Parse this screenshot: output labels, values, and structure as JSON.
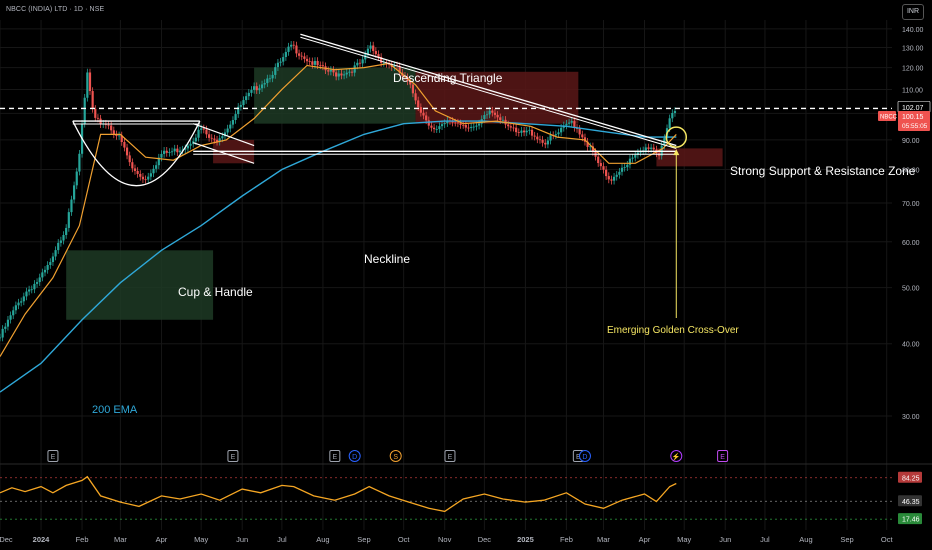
{
  "header": {
    "symbol_line": "NBCC (INDIA) LTD · 1D · NSE",
    "currency": "INR"
  },
  "colors": {
    "price": "#ffffff",
    "ema20": "#f0a030",
    "ema200": "#2fa8d8",
    "up": "#26a69a",
    "down": "#ef5350",
    "rsi": "#f5a623",
    "annotation": "#ffffff",
    "golden": "#f5e663",
    "cloud_green": "#1d3a24",
    "cloud_red": "#5a1818"
  },
  "annotations": {
    "descending_triangle": "Descending Triangle",
    "neckline": "Neckline",
    "cup_handle": "Cup & Handle",
    "ema200_label": "200 EMA",
    "sr_zone": "Strong Support & Resistance Zone",
    "golden_cross": "Emerging Golden Cross-Over"
  },
  "price_badges": {
    "last_level": "102.07",
    "ticker": "NBCC",
    "price": "100.15",
    "timer": "05:55:05"
  },
  "rsi_badges": {
    "upper": "84.25",
    "mid": "46.35",
    "lower": "17.46"
  },
  "event_markers": [
    {
      "date": "2024-01-10",
      "type": "E"
    },
    {
      "date": "2024-05-25",
      "type": "E"
    },
    {
      "date": "2024-08-10",
      "type": "E"
    },
    {
      "date": "2024-08-25",
      "type": "D"
    },
    {
      "date": "2024-09-25",
      "type": "S"
    },
    {
      "date": "2024-11-05",
      "type": "E"
    },
    {
      "date": "2025-02-10",
      "type": "E"
    },
    {
      "date": "2025-02-15",
      "type": "D"
    },
    {
      "date": "2025-04-25",
      "type": "⚡"
    },
    {
      "date": "2025-05-30",
      "type": "E"
    }
  ],
  "chart_data": {
    "type": "line",
    "title": "",
    "xlabel": "",
    "ylabel": "",
    "x_range": [
      "2023-12-01",
      "2025-10-05"
    ],
    "ylim": [
      26,
      145
    ],
    "y_scale": "log",
    "y_ticks": [
      30,
      40,
      50,
      60,
      70,
      80,
      90,
      100,
      110,
      120,
      130,
      140
    ],
    "y_tick_labels": [
      "30.00",
      "40.00",
      "50.00",
      "60.00",
      "70.00",
      "80.00",
      "90.00",
      "100.00",
      "110.00",
      "120.00",
      "130.00",
      "140.00"
    ],
    "x_ticks": [
      {
        "date": "2023-12-01",
        "label": "Dec"
      },
      {
        "date": "2024-01-01",
        "label": "2024"
      },
      {
        "date": "2024-02-01",
        "label": "Feb"
      },
      {
        "date": "2024-03-01",
        "label": "Mar"
      },
      {
        "date": "2024-04-01",
        "label": "Apr"
      },
      {
        "date": "2024-05-01",
        "label": "May"
      },
      {
        "date": "2024-06-01",
        "label": "Jun"
      },
      {
        "date": "2024-07-01",
        "label": "Jul"
      },
      {
        "date": "2024-08-01",
        "label": "Aug"
      },
      {
        "date": "2024-09-01",
        "label": "Sep"
      },
      {
        "date": "2024-10-01",
        "label": "Oct"
      },
      {
        "date": "2024-11-01",
        "label": "Nov"
      },
      {
        "date": "2024-12-01",
        "label": "Dec"
      },
      {
        "date": "2025-01-01",
        "label": "2025"
      },
      {
        "date": "2025-02-01",
        "label": "Feb"
      },
      {
        "date": "2025-03-01",
        "label": "Mar"
      },
      {
        "date": "2025-04-01",
        "label": "Apr"
      },
      {
        "date": "2025-05-01",
        "label": "May"
      },
      {
        "date": "2025-06-01",
        "label": "Jun"
      },
      {
        "date": "2025-07-01",
        "label": "Jul"
      },
      {
        "date": "2025-08-01",
        "label": "Aug"
      },
      {
        "date": "2025-09-01",
        "label": "Sep"
      },
      {
        "date": "2025-10-01",
        "label": "Oct"
      }
    ],
    "series": [
      {
        "key": "price",
        "values": [
          [
            "2023-12-01",
            41
          ],
          [
            "2023-12-10",
            45
          ],
          [
            "2023-12-20",
            49
          ],
          [
            "2024-01-01",
            52
          ],
          [
            "2024-01-10",
            56
          ],
          [
            "2024-01-20",
            64
          ],
          [
            "2024-01-30",
            84
          ],
          [
            "2024-02-05",
            117
          ],
          [
            "2024-02-10",
            97
          ],
          [
            "2024-02-20",
            96
          ],
          [
            "2024-03-01",
            90
          ],
          [
            "2024-03-10",
            80
          ],
          [
            "2024-03-20",
            77
          ],
          [
            "2024-04-01",
            85
          ],
          [
            "2024-04-10",
            86
          ],
          [
            "2024-04-20",
            88
          ],
          [
            "2024-05-01",
            94
          ],
          [
            "2024-05-10",
            89
          ],
          [
            "2024-05-20",
            94
          ],
          [
            "2024-06-01",
            104
          ],
          [
            "2024-06-10",
            110
          ],
          [
            "2024-06-20",
            115
          ],
          [
            "2024-07-01",
            123
          ],
          [
            "2024-07-08",
            131
          ],
          [
            "2024-07-20",
            124
          ],
          [
            "2024-08-01",
            119
          ],
          [
            "2024-08-10",
            117
          ],
          [
            "2024-08-20",
            118
          ],
          [
            "2024-09-01",
            123
          ],
          [
            "2024-09-05",
            131
          ],
          [
            "2024-09-15",
            123
          ],
          [
            "2024-09-25",
            120
          ],
          [
            "2024-10-05",
            112
          ],
          [
            "2024-10-15",
            100
          ],
          [
            "2024-10-25",
            93
          ],
          [
            "2024-11-05",
            97
          ],
          [
            "2024-11-15",
            96
          ],
          [
            "2024-11-25",
            94
          ],
          [
            "2024-12-05",
            101
          ],
          [
            "2024-12-15",
            98
          ],
          [
            "2024-12-25",
            92
          ],
          [
            "2025-01-05",
            93
          ],
          [
            "2025-01-15",
            89
          ],
          [
            "2025-01-25",
            92
          ],
          [
            "2025-02-05",
            97
          ],
          [
            "2025-02-15",
            90
          ],
          [
            "2025-02-25",
            82
          ],
          [
            "2025-03-05",
            76
          ],
          [
            "2025-03-15",
            81
          ],
          [
            "2025-03-25",
            84
          ],
          [
            "2025-04-05",
            88
          ],
          [
            "2025-04-12",
            85
          ],
          [
            "2025-04-20",
            98
          ],
          [
            "2025-04-25",
            100
          ]
        ]
      },
      {
        "key": "ema20",
        "values": [
          [
            "2023-12-01",
            38
          ],
          [
            "2023-12-20",
            45
          ],
          [
            "2024-01-10",
            52
          ],
          [
            "2024-01-30",
            64
          ],
          [
            "2024-02-15",
            92
          ],
          [
            "2024-03-01",
            92
          ],
          [
            "2024-03-20",
            84
          ],
          [
            "2024-04-10",
            83
          ],
          [
            "2024-05-01",
            88
          ],
          [
            "2024-05-20",
            90
          ],
          [
            "2024-06-10",
            98
          ],
          [
            "2024-07-01",
            110
          ],
          [
            "2024-07-20",
            121
          ],
          [
            "2024-08-10",
            119
          ],
          [
            "2024-09-01",
            120
          ],
          [
            "2024-09-20",
            122
          ],
          [
            "2024-10-10",
            112
          ],
          [
            "2024-10-25",
            101
          ],
          [
            "2024-11-15",
            96
          ],
          [
            "2024-12-10",
            97
          ],
          [
            "2025-01-05",
            95
          ],
          [
            "2025-01-25",
            91
          ],
          [
            "2025-02-15",
            90
          ],
          [
            "2025-03-05",
            82
          ],
          [
            "2025-03-25",
            82
          ],
          [
            "2025-04-15",
            87
          ],
          [
            "2025-04-25",
            92
          ]
        ]
      },
      {
        "key": "ema200",
        "values": [
          [
            "2023-12-01",
            33
          ],
          [
            "2024-01-01",
            37
          ],
          [
            "2024-02-01",
            44
          ],
          [
            "2024-03-01",
            51
          ],
          [
            "2024-04-01",
            58
          ],
          [
            "2024-05-01",
            64
          ],
          [
            "2024-06-01",
            72
          ],
          [
            "2024-07-01",
            80
          ],
          [
            "2024-08-01",
            86
          ],
          [
            "2024-09-01",
            92
          ],
          [
            "2024-10-01",
            96
          ],
          [
            "2024-11-01",
            97
          ],
          [
            "2024-12-01",
            97
          ],
          [
            "2025-01-01",
            96
          ],
          [
            "2025-02-01",
            95
          ],
          [
            "2025-03-01",
            93
          ],
          [
            "2025-04-01",
            91
          ],
          [
            "2025-04-25",
            91
          ]
        ]
      },
      {
        "key": "rsi",
        "values": [
          [
            "2023-12-01",
            60
          ],
          [
            "2023-12-10",
            68
          ],
          [
            "2023-12-20",
            62
          ],
          [
            "2024-01-01",
            70
          ],
          [
            "2024-01-10",
            60
          ],
          [
            "2024-01-20",
            72
          ],
          [
            "2024-02-01",
            80
          ],
          [
            "2024-02-05",
            86
          ],
          [
            "2024-02-15",
            55
          ],
          [
            "2024-03-01",
            45
          ],
          [
            "2024-03-15",
            38
          ],
          [
            "2024-04-01",
            55
          ],
          [
            "2024-04-15",
            50
          ],
          [
            "2024-05-01",
            58
          ],
          [
            "2024-05-15",
            48
          ],
          [
            "2024-06-01",
            66
          ],
          [
            "2024-06-15",
            60
          ],
          [
            "2024-07-01",
            72
          ],
          [
            "2024-07-10",
            70
          ],
          [
            "2024-07-25",
            55
          ],
          [
            "2024-08-10",
            48
          ],
          [
            "2024-08-25",
            58
          ],
          [
            "2024-09-05",
            70
          ],
          [
            "2024-09-20",
            55
          ],
          [
            "2024-10-05",
            45
          ],
          [
            "2024-10-20",
            35
          ],
          [
            "2024-11-01",
            30
          ],
          [
            "2024-11-15",
            50
          ],
          [
            "2024-12-01",
            58
          ],
          [
            "2024-12-15",
            50
          ],
          [
            "2025-01-01",
            45
          ],
          [
            "2025-01-15",
            48
          ],
          [
            "2025-02-01",
            60
          ],
          [
            "2025-02-15",
            42
          ],
          [
            "2025-03-01",
            35
          ],
          [
            "2025-03-15",
            48
          ],
          [
            "2025-04-01",
            58
          ],
          [
            "2025-04-10",
            46
          ],
          [
            "2025-04-20",
            70
          ],
          [
            "2025-04-25",
            75
          ]
        ]
      }
    ],
    "cloud": [
      {
        "from": "2024-01-20",
        "to": "2024-05-10",
        "top": 58,
        "bottom": 44,
        "color": "green"
      },
      {
        "from": "2024-05-10",
        "to": "2024-06-10",
        "top": 90,
        "bottom": 82,
        "color": "red"
      },
      {
        "from": "2024-06-10",
        "to": "2024-10-10",
        "top": 120,
        "bottom": 96,
        "color": "green"
      },
      {
        "from": "2024-10-10",
        "to": "2025-02-10",
        "top": 118,
        "bottom": 96,
        "color": "red"
      },
      {
        "from": "2025-04-10",
        "to": "2025-05-30",
        "top": 87,
        "bottom": 81,
        "color": "red"
      }
    ],
    "trendlines": [
      {
        "name": "descending-triangle-upper",
        "from": [
          "2024-07-15",
          137
        ],
        "to": [
          "2025-04-25",
          88
        ]
      },
      {
        "name": "neckline",
        "from": [
          "2024-04-25",
          86
        ],
        "to": [
          "2025-04-25",
          86
        ]
      },
      {
        "name": "cup-rim",
        "from": [
          "2024-01-25",
          97
        ],
        "to": [
          "2024-04-30",
          97
        ]
      },
      {
        "name": "sr-zone",
        "from": [
          "2023-12-01",
          102
        ],
        "to": [
          "2025-10-05",
          102
        ]
      }
    ],
    "rsi_levels": [
      84.25,
      46.35,
      17.46
    ],
    "rsi_ylim": [
      0,
      100
    ]
  }
}
